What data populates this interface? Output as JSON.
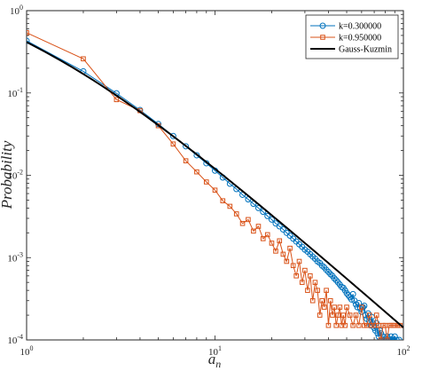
{
  "chart_data": {
    "type": "line",
    "xscale": "log",
    "yscale": "log",
    "xlim": [
      1,
      100
    ],
    "ylim": [
      0.0001,
      1
    ],
    "grid": false,
    "legend_placement": "top-right",
    "xlabel": "a",
    "xlabel_subscript": "n",
    "ylabel": "Probability",
    "xticks": [
      {
        "base": "10",
        "exp": "0"
      },
      {
        "base": "10",
        "exp": "1"
      },
      {
        "base": "10",
        "exp": "2"
      }
    ],
    "yticks": [
      {
        "base": "10",
        "exp": "0"
      },
      {
        "base": "10",
        "exp": "-1"
      },
      {
        "base": "10",
        "exp": "-2"
      },
      {
        "base": "10",
        "exp": "-3"
      },
      {
        "base": "10",
        "exp": "-4"
      }
    ],
    "series": [
      {
        "name": "k=0.300000",
        "color": "#0072BD",
        "marker": "circle",
        "points": [
          [
            1,
            0.43
          ],
          [
            2,
            0.183
          ],
          [
            3,
            0.099
          ],
          [
            4,
            0.062
          ],
          [
            5,
            0.042
          ],
          [
            6,
            0.03
          ],
          [
            7,
            0.0225
          ],
          [
            8,
            0.0175
          ],
          [
            9,
            0.014
          ],
          [
            10,
            0.0114
          ],
          [
            11,
            0.0094
          ],
          [
            12,
            0.0079
          ],
          [
            13,
            0.0068
          ],
          [
            14,
            0.0058
          ],
          [
            15,
            0.0051
          ],
          [
            16,
            0.0045
          ],
          [
            17,
            0.004
          ],
          [
            18,
            0.0036
          ],
          [
            19,
            0.0032
          ],
          [
            20,
            0.0029
          ],
          [
            21,
            0.0026
          ],
          [
            22,
            0.0024
          ],
          [
            23,
            0.0022
          ],
          [
            24,
            0.002
          ],
          [
            25,
            0.00185
          ],
          [
            26,
            0.0017
          ],
          [
            27,
            0.00157
          ],
          [
            28,
            0.00145
          ],
          [
            29,
            0.00135
          ],
          [
            30,
            0.00125
          ],
          [
            31,
            0.00118
          ],
          [
            32,
            0.0011
          ],
          [
            33,
            0.00103
          ],
          [
            34,
            0.00097
          ],
          [
            35,
            0.0009
          ],
          [
            36,
            0.00086
          ],
          [
            37,
            0.0008
          ],
          [
            38,
            0.00076
          ],
          [
            39,
            0.00071
          ],
          [
            40,
            0.00067
          ],
          [
            41,
            0.00063
          ],
          [
            42,
            0.0006
          ],
          [
            43,
            0.00056
          ],
          [
            44,
            0.00053
          ],
          [
            45,
            0.0005
          ],
          [
            46,
            0.00047
          ],
          [
            47,
            0.00044
          ],
          [
            48,
            0.00043
          ],
          [
            49,
            0.0004
          ],
          [
            50,
            0.00037
          ],
          [
            51,
            0.00035
          ],
          [
            52,
            0.00033
          ],
          [
            53,
            0.00031
          ],
          [
            54,
            0.00036
          ],
          [
            55,
            0.0003
          ],
          [
            56,
            0.00027
          ],
          [
            57,
            0.00025
          ],
          [
            58,
            0.00028
          ],
          [
            59,
            0.00024
          ],
          [
            60,
            0.00022
          ],
          [
            61,
            0.00025
          ],
          [
            62,
            0.00026
          ],
          [
            63,
            0.0002
          ],
          [
            64,
            0.00018
          ],
          [
            65,
            0.00021
          ],
          [
            66,
            0.00017
          ],
          [
            67,
            0.00015
          ],
          [
            68,
            0.00019
          ],
          [
            69,
            0.00016
          ],
          [
            70,
            0.00014
          ],
          [
            71,
            0.00013
          ],
          [
            72,
            0.00016
          ],
          [
            73,
            0.00012
          ],
          [
            74,
            0.00011
          ],
          [
            75,
            0.00013
          ],
          [
            76,
            0.00012
          ],
          [
            77,
            0.0001
          ],
          [
            78,
            0.00011
          ],
          [
            80,
            0.0001
          ],
          [
            82,
            0.00011
          ],
          [
            84,
            0.0001
          ],
          [
            86,
            0.00011
          ],
          [
            88,
            0.0001
          ],
          [
            90,
            0.00011
          ],
          [
            92,
            0.0001
          ],
          [
            95,
            0.0001
          ]
        ]
      },
      {
        "name": "k=0.950000",
        "color": "#D95319",
        "marker": "square",
        "points": [
          [
            1,
            0.54
          ],
          [
            2,
            0.26
          ],
          [
            3,
            0.083
          ],
          [
            4,
            0.061
          ],
          [
            5,
            0.04
          ],
          [
            6,
            0.024
          ],
          [
            7,
            0.015
          ],
          [
            8,
            0.011
          ],
          [
            9,
            0.0083
          ],
          [
            10,
            0.0066
          ],
          [
            11,
            0.0049
          ],
          [
            12,
            0.0042
          ],
          [
            13,
            0.0034
          ],
          [
            14,
            0.0026
          ],
          [
            15,
            0.0029
          ],
          [
            16,
            0.0021
          ],
          [
            17,
            0.0024
          ],
          [
            18,
            0.0017
          ],
          [
            19,
            0.0019
          ],
          [
            20,
            0.0015
          ],
          [
            21,
            0.0012
          ],
          [
            22,
            0.0016
          ],
          [
            23,
            0.0011
          ],
          [
            24,
            0.0009
          ],
          [
            25,
            0.0013
          ],
          [
            26,
            0.0008
          ],
          [
            27,
            0.0006
          ],
          [
            28,
            0.0009
          ],
          [
            29,
            0.0005
          ],
          [
            30,
            0.0007
          ],
          [
            31,
            0.0004
          ],
          [
            32,
            0.0006
          ],
          [
            33,
            0.0003
          ],
          [
            34,
            0.0005
          ],
          [
            35,
            0.0004
          ],
          [
            36,
            0.0002
          ],
          [
            37,
            0.0003
          ],
          [
            38,
            0.00025
          ],
          [
            39,
            0.0004
          ],
          [
            40,
            0.00015
          ],
          [
            41,
            0.0003
          ],
          [
            42,
            0.0002
          ],
          [
            43,
            0.00025
          ],
          [
            44,
            0.00015
          ],
          [
            45,
            0.0002
          ],
          [
            46,
            0.00025
          ],
          [
            47,
            0.00015
          ],
          [
            48,
            0.0002
          ],
          [
            49,
            0.00015
          ],
          [
            50,
            0.00025
          ],
          [
            52,
            0.0002
          ],
          [
            54,
            0.00015
          ],
          [
            56,
            0.0002
          ],
          [
            58,
            0.00015
          ],
          [
            60,
            0.00025
          ],
          [
            62,
            0.00015
          ],
          [
            64,
            0.00015
          ],
          [
            66,
            0.0002
          ],
          [
            68,
            0.00015
          ],
          [
            70,
            0.00015
          ],
          [
            72,
            0.0002
          ],
          [
            74,
            0.00015
          ],
          [
            76,
            0.0001
          ],
          [
            78,
            0.00015
          ],
          [
            80,
            0.00015
          ],
          [
            82,
            0.0001
          ],
          [
            84,
            0.00015
          ],
          [
            86,
            0.00015
          ],
          [
            88,
            0.00015
          ],
          [
            90,
            0.00015
          ],
          [
            93,
            0.00015
          ],
          [
            96,
            0.00015
          ]
        ]
      },
      {
        "name": "Gauss-Kuzmin",
        "color": "#000000",
        "marker": "none",
        "formula": "-log2(1 - 1/(n+1)^2)"
      }
    ]
  }
}
